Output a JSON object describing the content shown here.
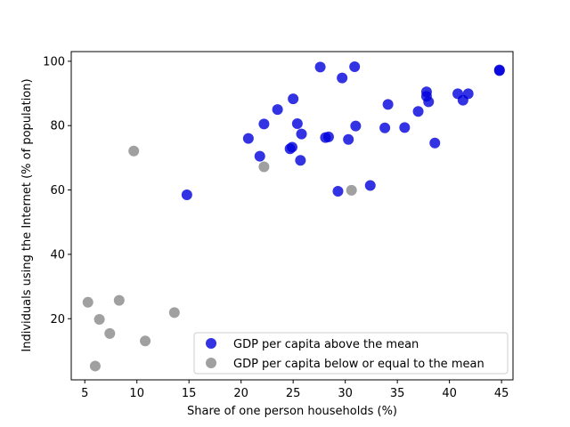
{
  "chart_data": {
    "type": "scatter",
    "title": "",
    "xlabel": "Share of one person households (%)",
    "ylabel": "Individuals using the Internet (% of population)",
    "xlim": [
      3.7,
      46.1
    ],
    "ylim": [
      1.0,
      103.0
    ],
    "xticks": [
      5,
      10,
      15,
      20,
      25,
      30,
      35,
      40,
      45
    ],
    "yticks": [
      20,
      40,
      60,
      80,
      100
    ],
    "grid": false,
    "legend_position": "lower right",
    "series": [
      {
        "name": "GDP per capita above the mean",
        "color": "#0000dd",
        "points": [
          [
            14.8,
            58.5
          ],
          [
            20.7,
            76.0
          ],
          [
            21.8,
            70.5
          ],
          [
            22.2,
            80.5
          ],
          [
            23.5,
            85.0
          ],
          [
            24.7,
            72.8
          ],
          [
            24.9,
            73.3
          ],
          [
            25.0,
            88.3
          ],
          [
            25.4,
            80.6
          ],
          [
            25.7,
            69.2
          ],
          [
            25.8,
            77.4
          ],
          [
            27.6,
            98.2
          ],
          [
            28.1,
            76.3
          ],
          [
            28.4,
            76.5
          ],
          [
            29.3,
            59.6
          ],
          [
            29.7,
            94.8
          ],
          [
            30.3,
            75.7
          ],
          [
            30.9,
            98.3
          ],
          [
            31.0,
            79.9
          ],
          [
            32.4,
            61.4
          ],
          [
            33.8,
            79.3
          ],
          [
            34.1,
            86.6
          ],
          [
            35.7,
            79.4
          ],
          [
            37.0,
            84.4
          ],
          [
            37.8,
            90.5
          ],
          [
            37.8,
            89.1
          ],
          [
            38.0,
            87.4
          ],
          [
            38.6,
            74.6
          ],
          [
            40.8,
            89.9
          ],
          [
            41.3,
            87.9
          ],
          [
            41.8,
            89.9
          ],
          [
            44.8,
            97.1
          ],
          [
            44.8,
            97.3
          ]
        ]
      },
      {
        "name": "GDP per capita below or equal to the mean",
        "color": "#888888",
        "points": [
          [
            5.3,
            25.1
          ],
          [
            6.0,
            5.3
          ],
          [
            6.4,
            19.8
          ],
          [
            7.4,
            15.4
          ],
          [
            8.3,
            25.7
          ],
          [
            9.7,
            72.1
          ],
          [
            10.8,
            13.1
          ],
          [
            13.6,
            21.9
          ],
          [
            22.2,
            67.2
          ],
          [
            30.6,
            59.9
          ]
        ]
      }
    ]
  }
}
